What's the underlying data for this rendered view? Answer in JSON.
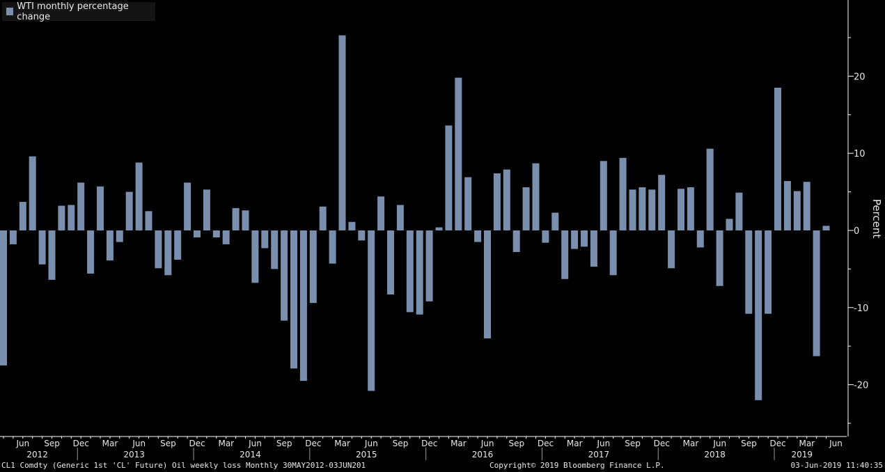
{
  "colors": {
    "background": "#000000",
    "bar": "#7a8fae",
    "axis": "#ffffff",
    "text": "#e8e8e8"
  },
  "legend": {
    "label": "WTI monthly percentage change"
  },
  "footer": {
    "left": "CL1 Comdty (Generic 1st 'CL' Future) Oil weekly loss  Monthly 30MAY2012-03JUN201",
    "center": "Copyright© 2019 Bloomberg Finance L.P.",
    "right": "03-Jun-2019 11:40:35"
  },
  "chart_data": {
    "type": "bar",
    "title": "",
    "ylabel": "Percent",
    "ylim": [
      -27,
      30
    ],
    "yticks": [
      20,
      10,
      0,
      -10,
      -20
    ],
    "grid": false,
    "legend_position": "top-left",
    "x_start": "2012-05",
    "month_tick_labels": [
      "Jun",
      "Sep",
      "Dec",
      "Mar",
      "Jun",
      "Sep",
      "Dec",
      "Mar",
      "Jun",
      "Sep",
      "Dec",
      "Mar",
      "Jun",
      "Sep",
      "Dec",
      "Mar",
      "Jun",
      "Sep",
      "Dec",
      "Mar",
      "Jun",
      "Sep",
      "Dec",
      "Mar",
      "Jun",
      "Sep",
      "Dec",
      "Mar",
      "Jun"
    ],
    "year_labels": [
      "2012",
      "2013",
      "2014",
      "2015",
      "2016",
      "2017",
      "2018",
      "2019"
    ],
    "series": [
      {
        "name": "WTI monthly percentage change",
        "values": [
          -17.5,
          -1.8,
          3.7,
          9.6,
          -4.4,
          -6.4,
          3.2,
          3.3,
          6.2,
          -5.6,
          5.7,
          -3.9,
          -1.5,
          5.0,
          8.8,
          2.5,
          -4.9,
          -5.8,
          -3.8,
          6.2,
          -0.9,
          5.3,
          -0.9,
          -1.8,
          2.9,
          2.6,
          -6.8,
          -2.3,
          -5.0,
          -11.7,
          -17.9,
          -19.5,
          -9.4,
          3.1,
          -4.3,
          25.3,
          1.1,
          -1.3,
          -20.8,
          4.4,
          -8.3,
          3.3,
          -10.6,
          -10.9,
          -9.2,
          0.4,
          13.6,
          19.8,
          6.9,
          -1.5,
          -14.0,
          7.4,
          7.9,
          -2.8,
          5.6,
          8.7,
          -1.6,
          2.3,
          -6.3,
          -2.4,
          -2.1,
          -4.7,
          9.0,
          -5.8,
          9.4,
          5.3,
          5.6,
          5.3,
          7.2,
          -4.9,
          5.4,
          5.6,
          -2.2,
          10.6,
          -7.2,
          1.5,
          4.9,
          -10.8,
          -22.0,
          -10.8,
          18.5,
          6.4,
          5.1,
          6.3,
          -16.3,
          0.6
        ]
      }
    ]
  }
}
